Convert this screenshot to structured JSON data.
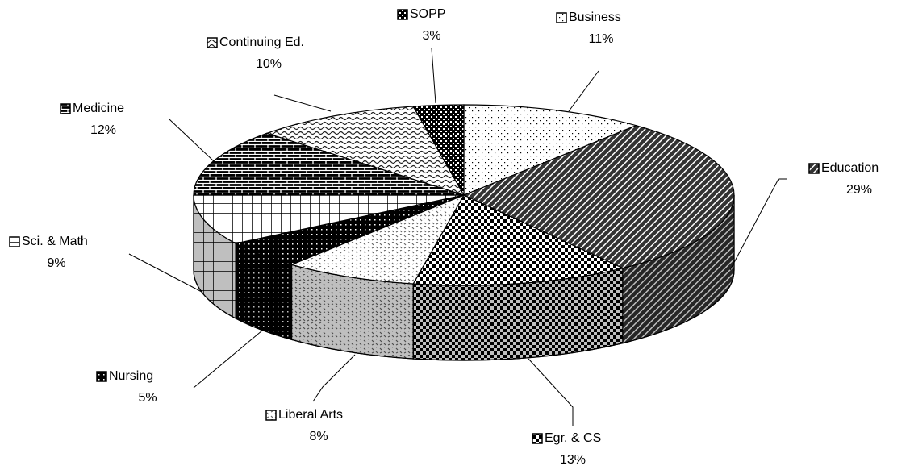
{
  "chart_data": {
    "type": "pie",
    "categories": [
      "Business",
      "Education",
      "Egr. & CS",
      "Liberal Arts",
      "Nursing",
      "Sci. & Math",
      "Medicine",
      "Continuing Ed.",
      "SOPP"
    ],
    "values": [
      11,
      29,
      13,
      8,
      5,
      9,
      12,
      10,
      3
    ],
    "value_labels": [
      "11%",
      "29%",
      "13%",
      "8%",
      "5%",
      "9%",
      "12%",
      "10%",
      "3%"
    ]
  }
}
